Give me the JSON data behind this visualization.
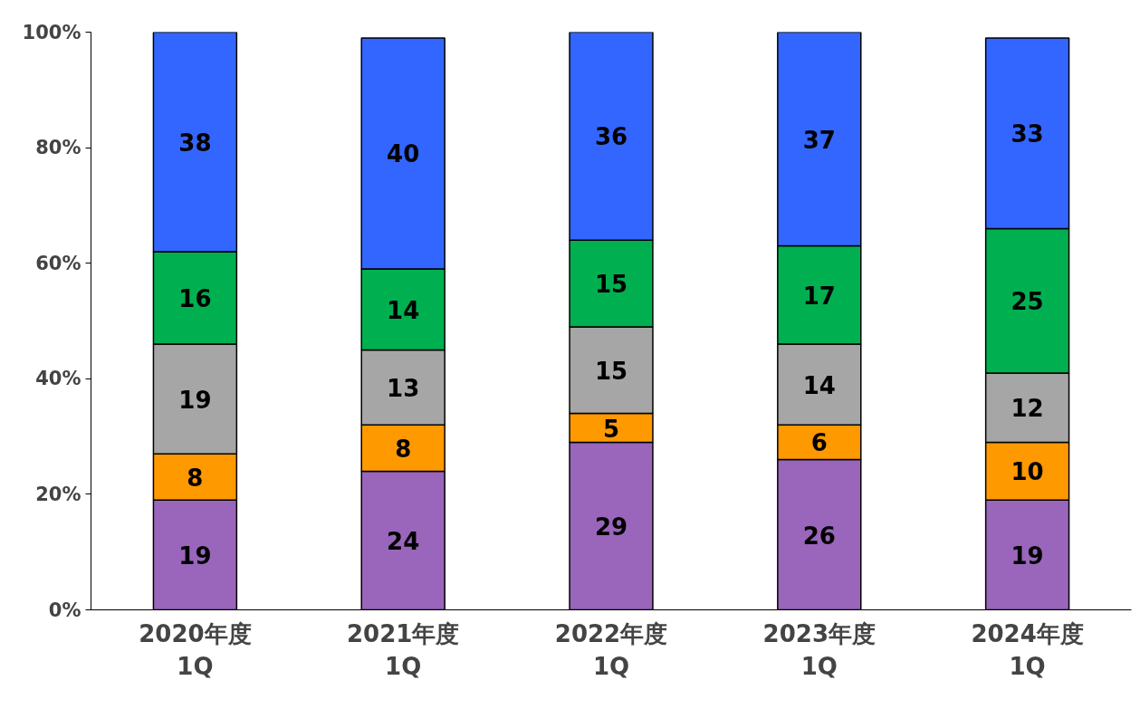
{
  "chart_data": {
    "type": "bar",
    "stacked": true,
    "categories": [
      "2020年度\n1Q",
      "2021年度\n1Q",
      "2022年度\n1Q",
      "2023年度\n1Q",
      "2024年度\n1Q"
    ],
    "series": [
      {
        "color": "#9966bb",
        "values": [
          19,
          24,
          29,
          26,
          19
        ]
      },
      {
        "color": "#ff9900",
        "values": [
          8,
          8,
          5,
          6,
          10
        ]
      },
      {
        "color": "#a6a6a6",
        "values": [
          19,
          13,
          15,
          14,
          12
        ]
      },
      {
        "color": "#00b050",
        "values": [
          16,
          14,
          15,
          17,
          25
        ]
      },
      {
        "color": "#3366ff",
        "values": [
          38,
          40,
          36,
          37,
          33
        ]
      }
    ],
    "ylim": [
      0,
      100
    ],
    "yticks": [
      {
        "value": 0,
        "label": "0%"
      },
      {
        "value": 20,
        "label": "20%"
      },
      {
        "value": 40,
        "label": "40%"
      },
      {
        "value": 60,
        "label": "60%"
      },
      {
        "value": 80,
        "label": "80%"
      },
      {
        "value": 100,
        "label": "100%"
      }
    ],
    "data_labels": true,
    "grid": false
  }
}
